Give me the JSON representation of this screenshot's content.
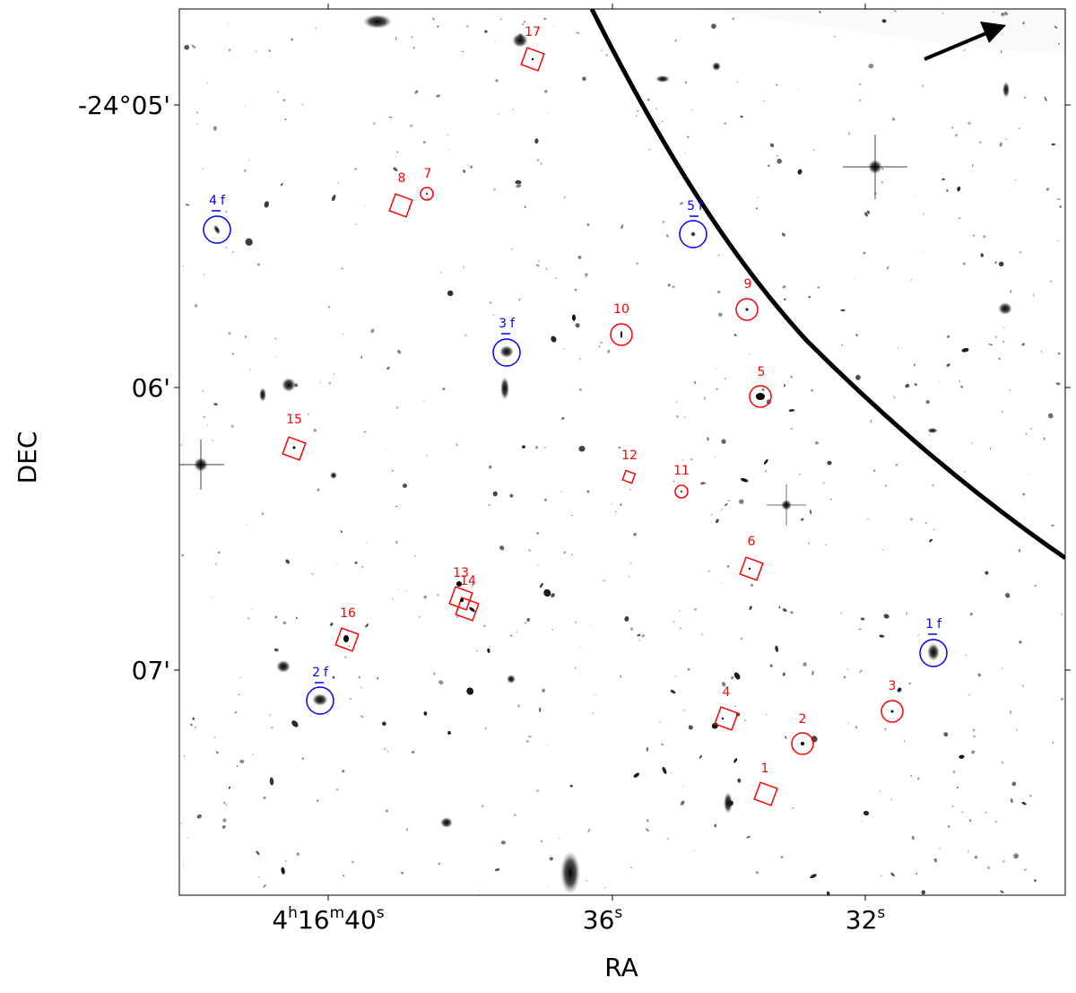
{
  "axes": {
    "xlabel": "RA",
    "ylabel": "DEC",
    "xticks": [
      {
        "h": "4",
        "m": "16",
        "s": "40",
        "suffix_h": "h",
        "suffix_m": "m",
        "suffix_s": "s"
      },
      {
        "label": "36",
        "suffix": "s"
      },
      {
        "label": "32",
        "suffix": "s"
      }
    ],
    "yticks": [
      "-24°05'",
      "06'",
      "07'"
    ]
  },
  "colors": {
    "red_markers": "#ff0000",
    "blue_markers": "#0000ff",
    "critical_curve": "#000000"
  },
  "blue_objects": [
    {
      "id": "1",
      "suffix": "f"
    },
    {
      "id": "2",
      "suffix": "f"
    },
    {
      "id": "3",
      "suffix": "f"
    },
    {
      "id": "4",
      "suffix": "f"
    },
    {
      "id": "5",
      "suffix": "f"
    }
  ],
  "red_circles": [
    "2",
    "3",
    "5",
    "7",
    "9",
    "10",
    "11"
  ],
  "red_squares": [
    "1",
    "4",
    "6",
    "8",
    "12",
    "13",
    "14",
    "15",
    "16",
    "17"
  ]
}
